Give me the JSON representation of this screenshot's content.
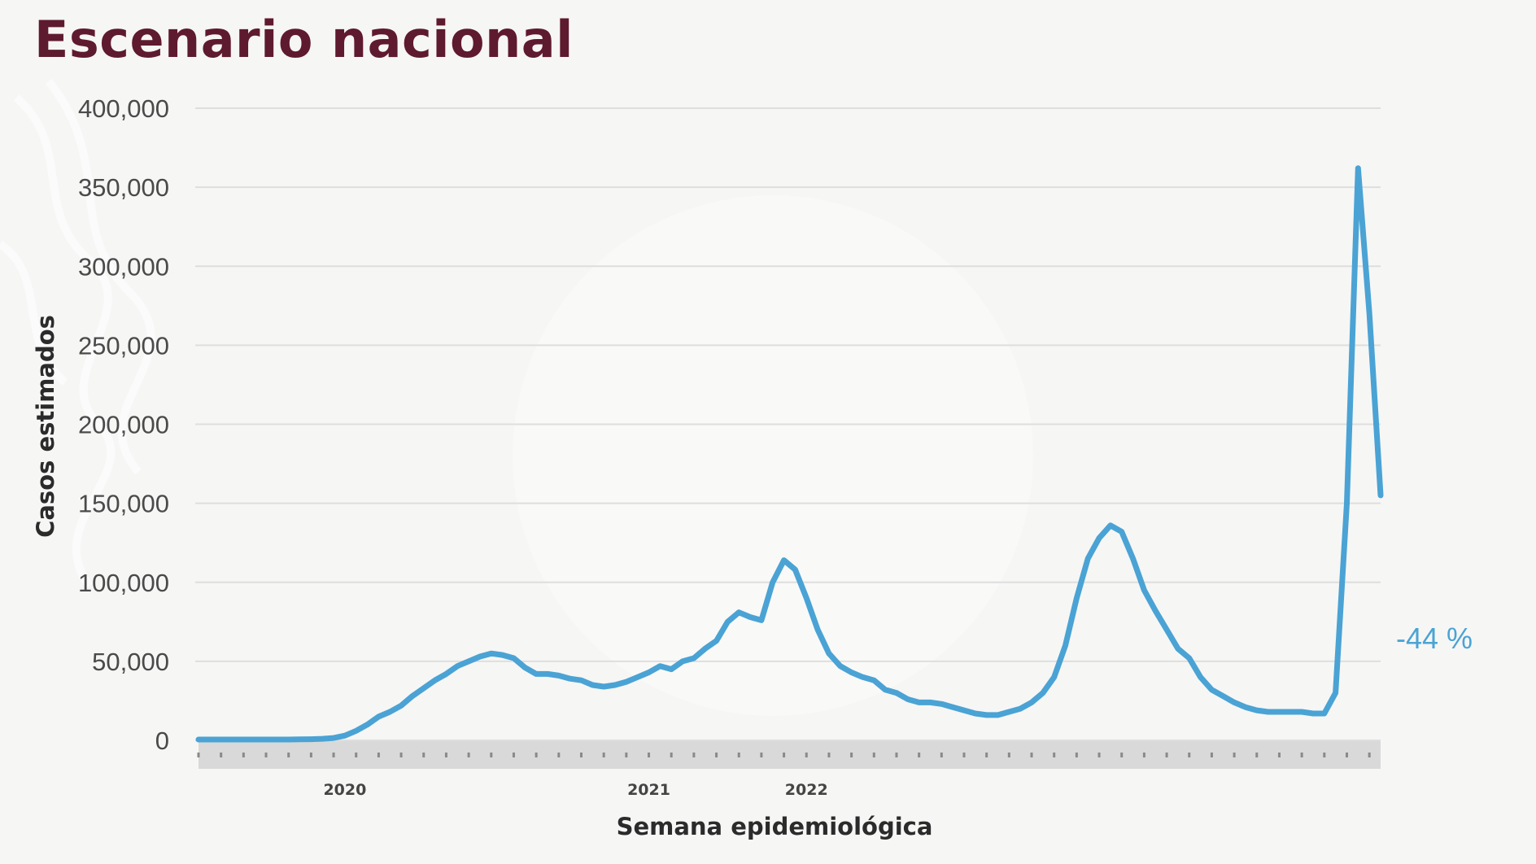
{
  "page": {
    "title": "Escenario nacional"
  },
  "colors": {
    "line": "#4aa3d4",
    "title": "#5e1a2e",
    "grid": "#dedede",
    "week_band": "#d9d9d9"
  },
  "chart_data": {
    "type": "line",
    "title": "Escenario nacional",
    "xlabel": "Semana epidemiológica",
    "ylabel": "Casos estimados",
    "ylim": [
      0,
      400000
    ],
    "y_ticks": [
      "0",
      "50,000",
      "100,000",
      "150,000",
      "200,000",
      "250,000",
      "300,000",
      "350,000",
      "400,000"
    ],
    "y_tick_values": [
      0,
      50000,
      100000,
      150000,
      200000,
      250000,
      300000,
      350000,
      400000
    ],
    "x_year_labels": [
      {
        "label": "2020",
        "week": 13
      },
      {
        "label": "2021",
        "week": 40
      },
      {
        "label": "2022",
        "week": 54
      }
    ],
    "grid": true,
    "annotation": "-44 %",
    "series": [
      {
        "values": [
          500,
          500,
          500,
          500,
          500,
          500,
          500,
          500,
          500,
          600,
          700,
          1000,
          1500,
          3000,
          6000,
          10000,
          15000,
          18000,
          22000,
          28000,
          33000,
          38000,
          42000,
          47000,
          50000,
          53000,
          55000,
          54000,
          52000,
          46000,
          42000,
          42000,
          41000,
          39000,
          38000,
          35000,
          34000,
          35000,
          37000,
          40000,
          43000,
          47000,
          45000,
          50000,
          52000,
          58000,
          63000,
          75000,
          81000,
          78000,
          76000,
          100000,
          114000,
          108000,
          90000,
          70000,
          55000,
          47000,
          43000,
          40000,
          38000,
          32000,
          30000,
          26000,
          24000,
          24000,
          23000,
          21000,
          19000,
          17000,
          16000,
          16000,
          18000,
          20000,
          24000,
          30000,
          40000,
          60000,
          90000,
          115000,
          128000,
          136000,
          132000,
          115000,
          95000,
          82000,
          70000,
          58000,
          52000,
          40000,
          32000,
          28000,
          24000,
          21000,
          19000,
          18000,
          18000,
          18000,
          18000,
          17000,
          17000,
          30000,
          150000,
          362000,
          270000,
          155000
        ]
      }
    ]
  }
}
